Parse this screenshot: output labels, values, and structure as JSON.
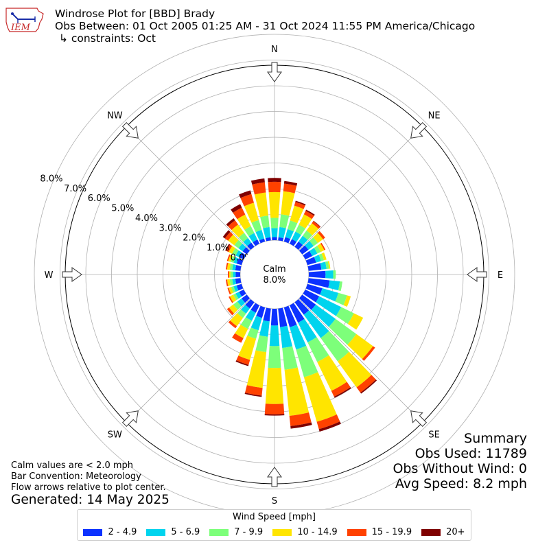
{
  "header": {
    "logo_text": "IEM",
    "title": "Windrose Plot for [BBD] Brady",
    "subtitle": "Obs Between: 01 Oct 2005 01:25 AM - 31 Oct 2024 11:55 PM America/Chicago",
    "constraints": "↳ constraints: Oct"
  },
  "notes": {
    "calm_note": "Calm values are < 2.0 mph",
    "bar_convention": "Bar Convention: Meteorology",
    "flow_note": "Flow arrows relative to plot center.",
    "generated": "Generated: 14 May 2025"
  },
  "summary": {
    "heading": "Summary",
    "obs_used": "Obs Used: 11789",
    "obs_without_wind": "Obs Without Wind: 0",
    "avg_speed": "Avg Speed: 8.2 mph"
  },
  "legend": {
    "title": "Wind Speed [mph]",
    "items": [
      {
        "label": "2 - 4.9",
        "color": "#0c32ff"
      },
      {
        "label": "5 - 6.9",
        "color": "#00d4ee"
      },
      {
        "label": "7 - 9.9",
        "color": "#7dff7a"
      },
      {
        "label": "10 - 14.9",
        "color": "#ffe500"
      },
      {
        "label": "15 - 19.9",
        "color": "#ff4100"
      },
      {
        "label": "20+",
        "color": "#7f0000"
      }
    ]
  },
  "chart_data": {
    "type": "windrose",
    "calm_label": "Calm",
    "calm_value": "8.0%",
    "radial_ticks": [
      "0.0%",
      "1.0%",
      "2.0%",
      "3.0%",
      "4.0%",
      "5.0%",
      "6.0%",
      "7.0%",
      "8.0%"
    ],
    "rlim": [
      0,
      8
    ],
    "compass_labels": [
      {
        "text": "N",
        "deg": 0
      },
      {
        "text": "NE",
        "deg": 45
      },
      {
        "text": "E",
        "deg": 90
      },
      {
        "text": "SE",
        "deg": 135
      },
      {
        "text": "S",
        "deg": 180
      },
      {
        "text": "SW",
        "deg": 225
      },
      {
        "text": "W",
        "deg": 270
      },
      {
        "text": "NW",
        "deg": 315
      }
    ],
    "direction_deg": [
      0,
      10,
      20,
      30,
      40,
      50,
      60,
      70,
      80,
      90,
      100,
      110,
      120,
      130,
      140,
      150,
      160,
      170,
      180,
      190,
      200,
      210,
      220,
      230,
      240,
      250,
      260,
      270,
      280,
      290,
      300,
      310,
      320,
      330,
      340,
      350
    ],
    "series": [
      {
        "name": "2 - 4.9",
        "color": "#0c32ff",
        "values": [
          0.12,
          0.12,
          0.18,
          0.2,
          0.25,
          0.3,
          0.3,
          0.35,
          0.5,
          0.65,
          0.82,
          0.6,
          0.6,
          0.65,
          0.6,
          0.75,
          0.8,
          0.72,
          0.65,
          0.5,
          0.42,
          0.32,
          0.3,
          0.25,
          0.2,
          0.2,
          0.2,
          0.18,
          0.2,
          0.2,
          0.2,
          0.2,
          0.2,
          0.18,
          0.12,
          0.12
        ]
      },
      {
        "name": "5 - 6.9",
        "color": "#00d4ee",
        "values": [
          0.35,
          0.4,
          0.32,
          0.32,
          0.28,
          0.25,
          0.22,
          0.2,
          0.2,
          0.3,
          0.4,
          0.65,
          0.95,
          0.95,
          1.12,
          0.85,
          0.9,
          0.82,
          0.8,
          0.6,
          0.5,
          0.35,
          0.25,
          0.2,
          0.15,
          0.12,
          0.12,
          0.1,
          0.12,
          0.12,
          0.15,
          0.2,
          0.22,
          0.28,
          0.35,
          0.4
        ]
      },
      {
        "name": "7 - 9.9",
        "color": "#7dff7a",
        "values": [
          0.4,
          0.5,
          0.35,
          0.3,
          0.25,
          0.2,
          0.15,
          0.12,
          0.1,
          0.1,
          0.1,
          0.35,
          0.55,
          1.0,
          1.12,
          0.85,
          1.12,
          0.85,
          0.85,
          0.6,
          0.35,
          0.35,
          0.2,
          0.2,
          0.1,
          0.1,
          0.1,
          0.1,
          0.1,
          0.12,
          0.15,
          0.2,
          0.25,
          0.3,
          0.4,
          0.45
        ]
      },
      {
        "name": "10 - 14.9",
        "color": "#ffe500",
        "values": [
          1.0,
          0.9,
          0.6,
          0.45,
          0.35,
          0.25,
          0.15,
          0.1,
          0.05,
          0.0,
          0.0,
          0.15,
          0.4,
          0.8,
          1.25,
          1.25,
          1.8,
          1.8,
          1.4,
          1.4,
          0.85,
          0.4,
          0.4,
          0.2,
          0.15,
          0.1,
          0.1,
          0.05,
          0.1,
          0.1,
          0.15,
          0.3,
          0.4,
          0.5,
          0.7,
          0.9
        ]
      },
      {
        "name": "15 - 19.9",
        "color": "#ff4100",
        "values": [
          0.4,
          0.3,
          0.15,
          0.15,
          0.1,
          0.1,
          0.05,
          0.0,
          0.0,
          0.0,
          0.0,
          0.0,
          0.0,
          0.1,
          0.25,
          0.25,
          0.3,
          0.4,
          0.4,
          0.3,
          0.2,
          0.2,
          0.1,
          0.1,
          0.05,
          0.05,
          0.05,
          0.05,
          0.05,
          0.05,
          0.1,
          0.15,
          0.2,
          0.3,
          0.35,
          0.4
        ]
      },
      {
        "name": "20+",
        "color": "#7f0000",
        "values": [
          0.15,
          0.1,
          0.05,
          0.05,
          0.02,
          0.0,
          0.0,
          0.0,
          0.0,
          0.0,
          0.0,
          0.0,
          0.0,
          0.0,
          0.05,
          0.05,
          0.1,
          0.1,
          0.05,
          0.05,
          0.05,
          0.0,
          0.0,
          0.0,
          0.0,
          0.0,
          0.0,
          0.0,
          0.0,
          0.0,
          0.05,
          0.1,
          0.1,
          0.15,
          0.15,
          0.15
        ]
      }
    ]
  }
}
